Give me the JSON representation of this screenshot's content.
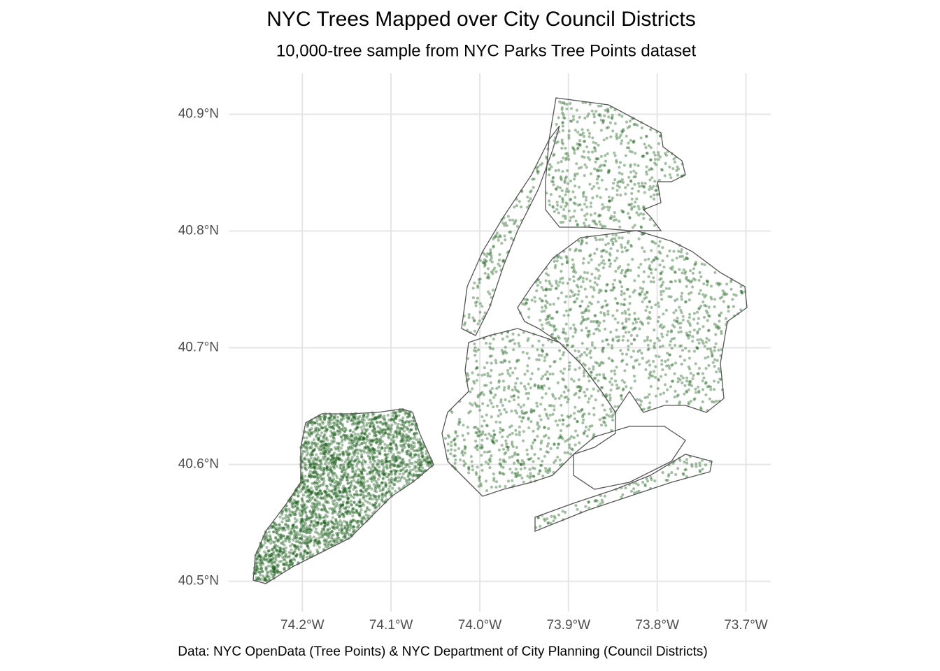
{
  "chart_data": {
    "type": "map",
    "title": "NYC Trees Mapped over City Council Districts",
    "subtitle": "10,000-tree sample from NYC Parks Tree Points dataset",
    "caption": "Data: NYC OpenData (Tree Points) & NYC Department of City Planning (Council Districts)",
    "color": "#1b5e1b",
    "grid": true,
    "xlim": [
      -74.283,
      -73.672
    ],
    "ylim": [
      40.474,
      40.929
    ],
    "xticks": [
      {
        "value": -74.2,
        "label": "74.2°W"
      },
      {
        "value": -74.1,
        "label": "74.1°W"
      },
      {
        "value": -74.0,
        "label": "74.0°W"
      },
      {
        "value": -73.9,
        "label": "73.9°W"
      },
      {
        "value": -73.8,
        "label": "73.8°W"
      },
      {
        "value": -73.7,
        "label": "73.7°W"
      }
    ],
    "yticks": [
      {
        "value": 40.5,
        "label": "40.5°N"
      },
      {
        "value": 40.6,
        "label": "40.6°N"
      },
      {
        "value": 40.7,
        "label": "40.7°N"
      },
      {
        "value": 40.8,
        "label": "40.8°N"
      },
      {
        "value": 40.9,
        "label": "40.9°N"
      }
    ]
  }
}
